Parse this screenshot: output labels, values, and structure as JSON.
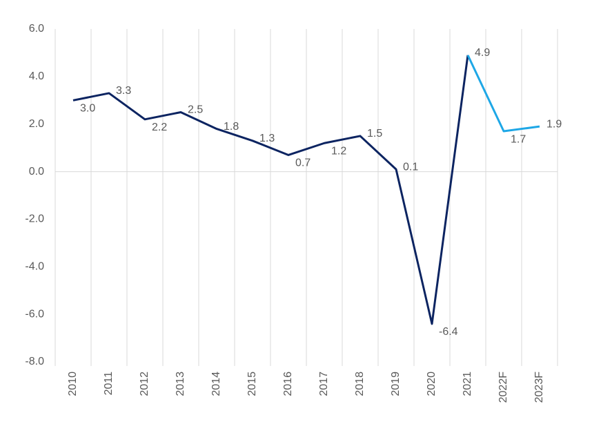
{
  "chart_data": {
    "type": "line",
    "categories": [
      "2010",
      "2011",
      "2012",
      "2013",
      "2014",
      "2015",
      "2016",
      "2017",
      "2018",
      "2019",
      "2020",
      "2021",
      "2022F",
      "2023F"
    ],
    "series": [
      {
        "color": "#0c2461",
        "values": [
          3.0,
          3.3,
          2.2,
          2.5,
          1.8,
          1.3,
          0.7,
          1.2,
          1.5,
          0.1,
          -6.4,
          4.9,
          null,
          null
        ],
        "value_labels": [
          "3.0",
          "3.3",
          "2.2",
          "2.5",
          "1.8",
          "1.3",
          "0.7",
          "1.2",
          "1.5",
          "0.1",
          "-6.4",
          "4.9",
          null,
          null
        ]
      },
      {
        "color": "#1ea7e6",
        "values": [
          null,
          null,
          null,
          null,
          null,
          null,
          null,
          null,
          null,
          null,
          null,
          4.9,
          1.7,
          1.9
        ],
        "value_labels": [
          null,
          null,
          null,
          null,
          null,
          null,
          null,
          null,
          null,
          null,
          null,
          null,
          "1.7",
          "1.9"
        ]
      }
    ],
    "ylim": [
      -8,
      6
    ],
    "yticks": [
      {
        "value": -8,
        "label": "-8.0"
      },
      {
        "value": -6,
        "label": "-6.0"
      },
      {
        "value": -4,
        "label": "-4.0"
      },
      {
        "value": -2,
        "label": "-2.0"
      },
      {
        "value": 0,
        "label": "0.0"
      },
      {
        "value": 2,
        "label": "2.0"
      },
      {
        "value": 4,
        "label": "4.0"
      },
      {
        "value": 6,
        "label": "6.0"
      }
    ]
  }
}
